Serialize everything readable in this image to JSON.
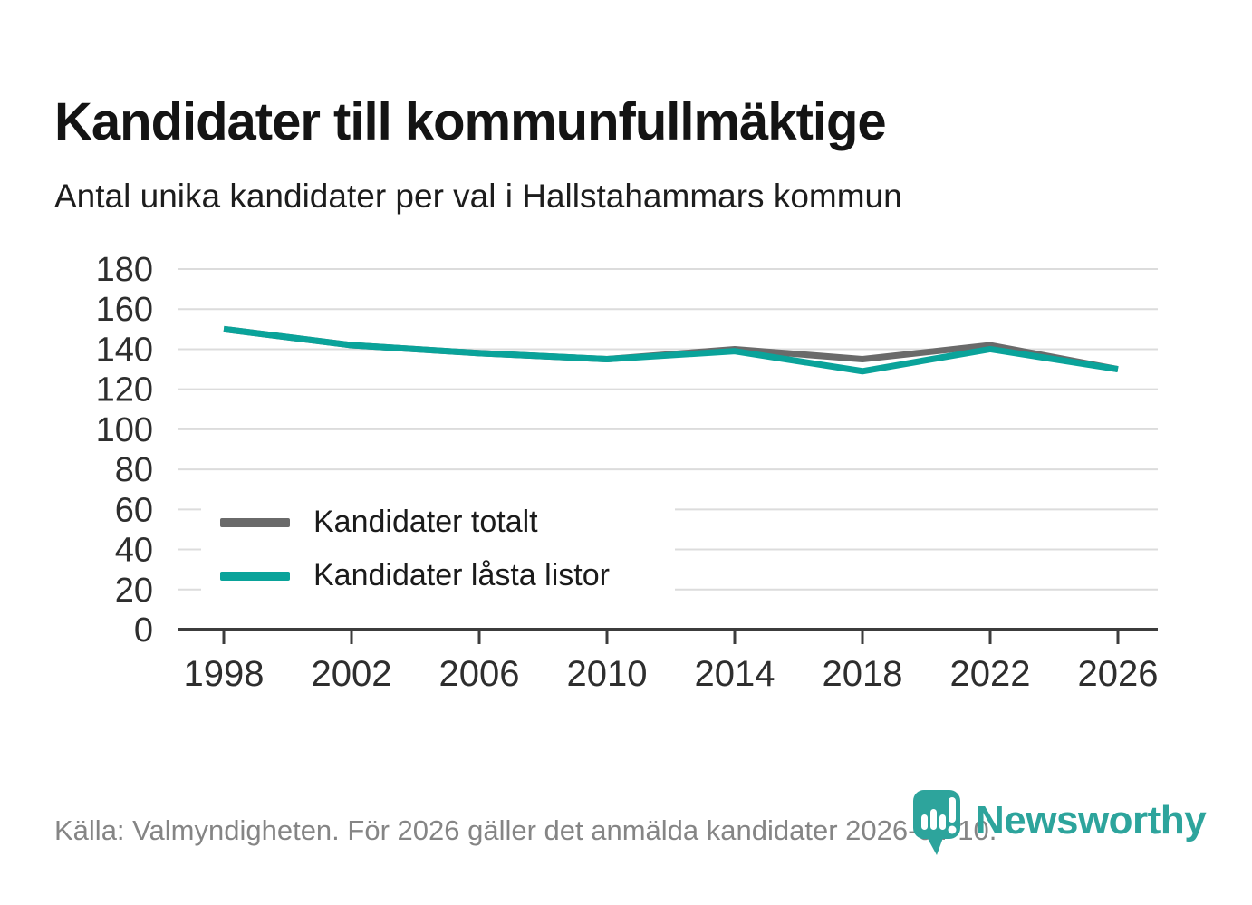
{
  "header": {
    "title": "Kandidater till kommunfullmäktige",
    "subtitle": "Antal unika kandidater per val i Hallstahammars kommun"
  },
  "footer": {
    "source": "Källa: Valmyndigheten. För 2026 gäller det anmälda kandidater 2026-04-10.",
    "brand": "Newsworthy",
    "logo_icon": "newsworthy-pin-icon"
  },
  "colors": {
    "teal": "#0aa39a",
    "gray": "#6a6a6a",
    "grid": "#dcdcdc",
    "axis": "#3c3c3c",
    "tick_label": "#2e2e2e",
    "title": "#141414",
    "subtitle": "#1d1d1d",
    "footer_text": "#858585",
    "logo": "#2da49c",
    "legend_bg": "#ffffff"
  },
  "chart_data": {
    "type": "line",
    "title": "Kandidater till kommunfullmäktige",
    "subtitle": "Antal unika kandidater per val i Hallstahammars kommun",
    "x": [
      1998,
      2002,
      2006,
      2010,
      2014,
      2018,
      2022,
      2026
    ],
    "series": [
      {
        "name": "Kandidater totalt",
        "color": "#6a6a6a",
        "values": [
          150,
          142,
          138,
          135,
          140,
          135,
          142,
          130
        ]
      },
      {
        "name": "Kandidater låsta listor",
        "color": "#0aa39a",
        "values": [
          150,
          142,
          138,
          135,
          139,
          129,
          140,
          130
        ]
      }
    ],
    "xlabel": "",
    "ylabel": "",
    "ylim": [
      0,
      180
    ],
    "y_ticks": [
      0,
      20,
      40,
      60,
      80,
      100,
      120,
      140,
      160,
      180
    ],
    "grid": "horizontal",
    "legend_position": "inside-left-bottom"
  }
}
